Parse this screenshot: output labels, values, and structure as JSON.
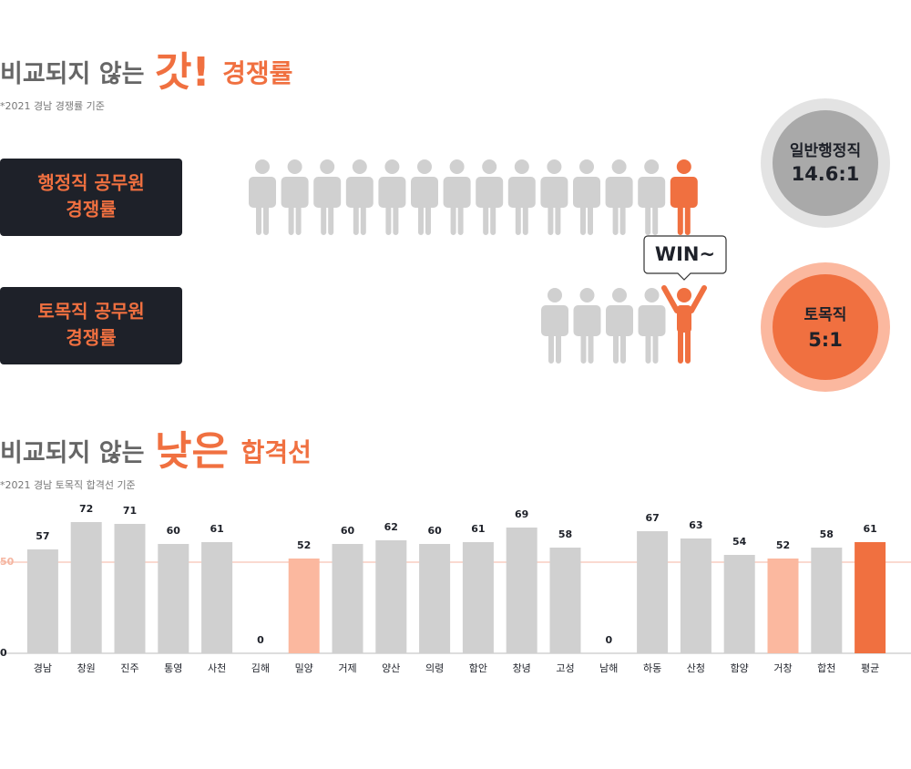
{
  "header1": {
    "title_lead": "비교되지 않는",
    "title_emphasis": "갓!",
    "title_tail": "경쟁률",
    "note": "*2021 경남 경쟁률 기준"
  },
  "comparison": {
    "rows": [
      {
        "label_lines": [
          "행정직 공무원",
          "경쟁률"
        ],
        "badge_name": "일반행정직",
        "badge_ratio": "14.6:1"
      },
      {
        "label_lines": [
          "토목직 공무원",
          "경쟁률"
        ],
        "badge_name": "토목직",
        "badge_ratio": "5:1"
      }
    ],
    "win_label": "WIN~"
  },
  "header2": {
    "title_lead": "비교되지 않는",
    "title_emphasis": "낮은",
    "title_tail": "합격선",
    "note": "*2021 경남 토목직 합격선 기준"
  },
  "chart_data": {
    "type": "bar",
    "categories": [
      "경남",
      "창원",
      "진주",
      "통영",
      "사천",
      "김해",
      "밀양",
      "거제",
      "양산",
      "의령",
      "함안",
      "창녕",
      "고성",
      "남해",
      "하동",
      "산청",
      "함양",
      "거창",
      "합천",
      "평균"
    ],
    "values": [
      57,
      72,
      71,
      60,
      61,
      0,
      52,
      60,
      62,
      60,
      61,
      69,
      58,
      0,
      67,
      63,
      54,
      52,
      58,
      61
    ],
    "colors": [
      "#d0d0d0",
      "#d0d0d0",
      "#d0d0d0",
      "#d0d0d0",
      "#d0d0d0",
      "#d0d0d0",
      "#fbb89f",
      "#d0d0d0",
      "#d0d0d0",
      "#d0d0d0",
      "#d0d0d0",
      "#d0d0d0",
      "#d0d0d0",
      "#d0d0d0",
      "#d0d0d0",
      "#d0d0d0",
      "#d0d0d0",
      "#fbb89f",
      "#d0d0d0",
      "#f07040"
    ],
    "ylim": [
      0,
      75
    ],
    "yticks": [
      0,
      50
    ],
    "grid": true,
    "grid_color": "#f5b5a0"
  }
}
